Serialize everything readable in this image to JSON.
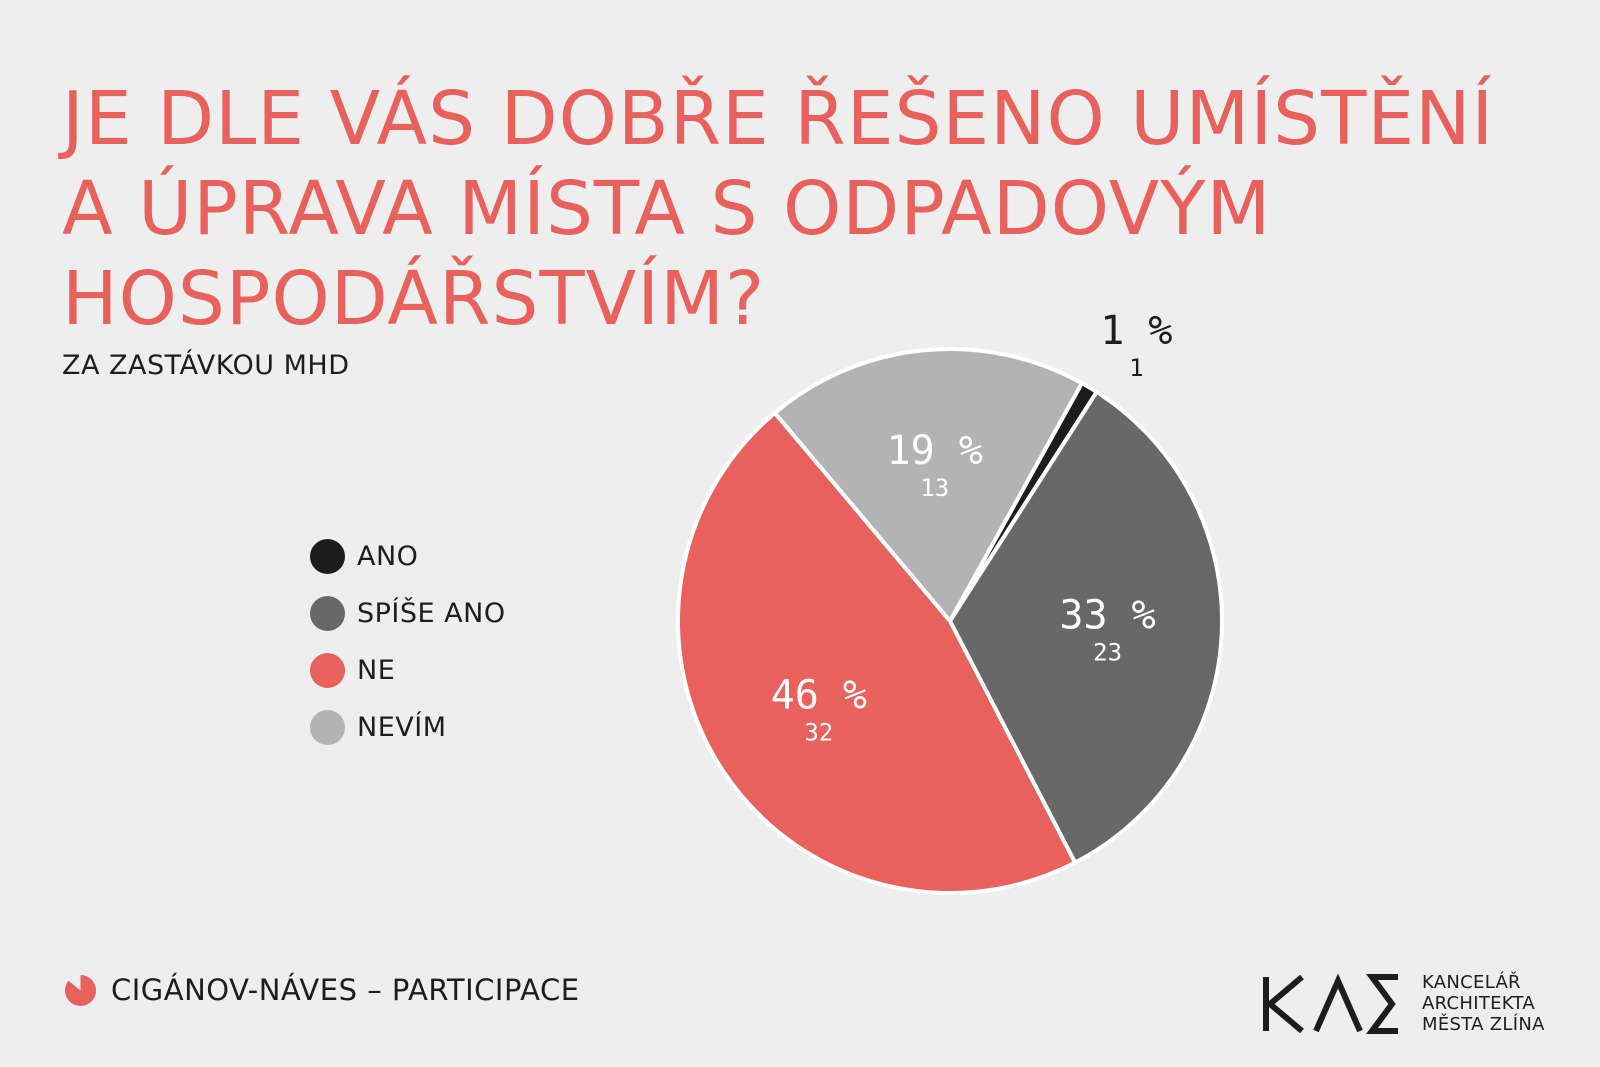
{
  "title_lines": [
    "JE DLE VÁS DOBŘE ŘEŠENO UMÍSTĚNÍ",
    "A ÚPRAVA MÍSTA S ODPADOVÝM",
    "HOSPODÁŘSTVÍM?"
  ],
  "subtitle": "ZA ZASTÁVKOU MHD",
  "chart_data": {
    "type": "pie",
    "title": "JE DLE VÁS DOBŘE ŘEŠENO UMÍSTĚNÍ A ÚPRAVA MÍSTA S ODPADOVÝM HOSPODÁŘSTVÍM?",
    "subtitle": "ZA ZASTÁVKOU MHD",
    "legend_position": "left",
    "slices": [
      {
        "label": "ANO",
        "percent": 1,
        "count": 1,
        "color": "#1d1d1d",
        "label_color": "#1d1d1d",
        "label_outside": true
      },
      {
        "label": "SPÍŠE ANO",
        "percent": 33,
        "count": 23,
        "color": "#686868",
        "label_color": "#ffffff",
        "label_outside": false
      },
      {
        "label": "NE",
        "percent": 46,
        "count": 32,
        "color": "#e8615c",
        "label_color": "#ffffff",
        "label_outside": false
      },
      {
        "label": "NEVÍM",
        "percent": 19,
        "count": 13,
        "color": "#b3b3b3",
        "label_color": "#ffffff",
        "label_outside": false
      }
    ]
  },
  "legend": [
    {
      "label": "ANO",
      "color": "#1d1d1d"
    },
    {
      "label": "SPÍŠE ANO",
      "color": "#686868"
    },
    {
      "label": "NE",
      "color": "#e8615c"
    },
    {
      "label": "NEVÍM",
      "color": "#b3b3b3"
    }
  ],
  "footer": {
    "text": "CIGÁNOV-NÁVES – PARTICIPACE",
    "icon": "pie-chart-icon",
    "icon_color": "#e8615c"
  },
  "logo": {
    "mark_text": "KAM",
    "lines": [
      "KANCELÁŘ",
      "ARCHITEKTA",
      "MĚSTA ZLÍNA"
    ]
  },
  "colors": {
    "accent": "#e8615c",
    "background": "#eeeeee",
    "text": "#1d1d1d"
  }
}
